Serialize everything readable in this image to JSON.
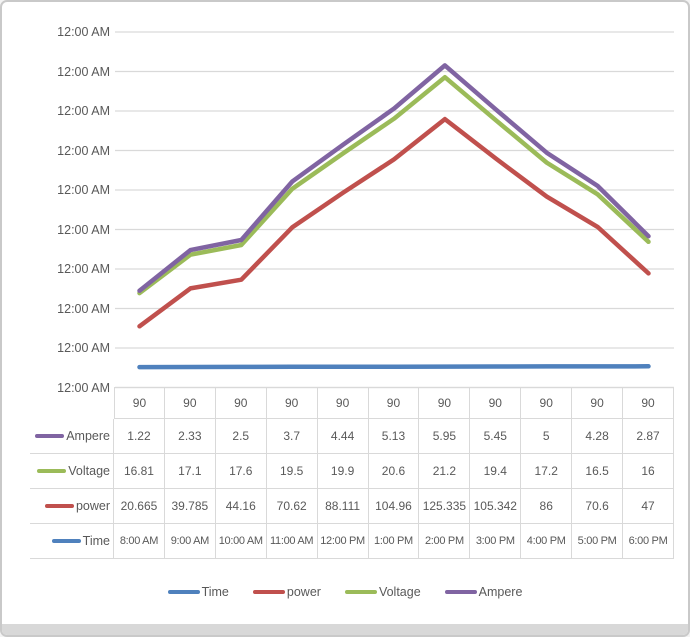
{
  "window": {
    "background": "#ffffff",
    "frame_border_color": "#c9c9c9",
    "bottom_bar_color": "#d8d8d8",
    "text_color": "#595959",
    "gridline_color": "#d9d9d9",
    "axis_line_color": "#bfbfbf"
  },
  "chart_data": {
    "type": "line",
    "subtype": "stacked",
    "title": "",
    "xlabel": "",
    "ylabel": "",
    "categories": [
      "8:00 AM",
      "9:00 AM",
      "10:00 AM",
      "11:00 AM",
      "12:00 PM",
      "1:00 PM",
      "2:00 PM",
      "3:00 PM",
      "4:00 PM",
      "5:00 PM",
      "6:00 PM"
    ],
    "series": [
      {
        "name": "Time",
        "color": "#4F81BD",
        "values": [
          "8:00 AM",
          "9:00 AM",
          "10:00 AM",
          "11:00 AM",
          "12:00 PM",
          "1:00 PM",
          "2:00 PM",
          "3:00 PM",
          "4:00 PM",
          "5:00 PM",
          "6:00 PM"
        ]
      },
      {
        "name": "power",
        "color": "#C0504D",
        "values": [
          20.665,
          39.785,
          44.16,
          70.62,
          88.111,
          104.96,
          125.335,
          105.342,
          86,
          70.6,
          47
        ]
      },
      {
        "name": "Voltage",
        "color": "#9BBB59",
        "values": [
          16.81,
          17.1,
          17.6,
          19.5,
          19.9,
          20.6,
          21.2,
          19.4,
          17.2,
          16.5,
          16
        ]
      },
      {
        "name": "Ampere",
        "color": "#8064A2",
        "values": [
          1.22,
          2.33,
          2.5,
          3.7,
          4.44,
          5.13,
          5.95,
          5.45,
          5,
          4.28,
          2.87
        ]
      }
    ],
    "y_axis": {
      "tick_label": "12:00 AM",
      "tick_count": 10,
      "min": -10,
      "max": 170,
      "major_unit": 20,
      "gridlines": true
    },
    "legend_position": "bottom"
  },
  "data_table": {
    "top_row": {
      "label": "",
      "values": [
        "90",
        "90",
        "90",
        "90",
        "90",
        "90",
        "90",
        "90",
        "90",
        "90",
        "90"
      ]
    },
    "rows": [
      {
        "label": "Ampere",
        "key_color": "#8064A2",
        "values": [
          "1.22",
          "2.33",
          "2.5",
          "3.7",
          "4.44",
          "5.13",
          "5.95",
          "5.45",
          "5",
          "4.28",
          "2.87"
        ]
      },
      {
        "label": "Voltage",
        "key_color": "#9BBB59",
        "values": [
          "16.81",
          "17.1",
          "17.6",
          "19.5",
          "19.9",
          "20.6",
          "21.2",
          "19.4",
          "17.2",
          "16.5",
          "16"
        ]
      },
      {
        "label": "power",
        "key_color": "#C0504D",
        "values": [
          "20.665",
          "39.785",
          "44.16",
          "70.62",
          "88.111",
          "104.96",
          "125.335",
          "105.342",
          "86",
          "70.6",
          "47"
        ]
      },
      {
        "label": "Time",
        "key_color": "#4F81BD",
        "values": [
          "8:00 AM",
          "9:00 AM",
          "10:00 AM",
          "11:00 AM",
          "12:00 PM",
          "1:00 PM",
          "2:00 PM",
          "3:00 PM",
          "4:00 PM",
          "5:00 PM",
          "6:00 PM"
        ]
      }
    ]
  },
  "legend": {
    "items": [
      {
        "label": "Time",
        "color": "#4F81BD"
      },
      {
        "label": "power",
        "color": "#C0504D"
      },
      {
        "label": "Voltage",
        "color": "#9BBB59"
      },
      {
        "label": "Ampere",
        "color": "#8064A2"
      }
    ]
  }
}
